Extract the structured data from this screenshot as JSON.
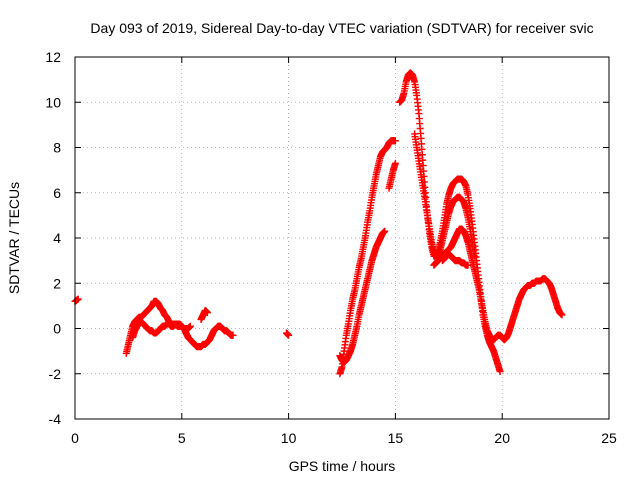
{
  "chart_data": {
    "type": "scatter",
    "title": "Day 093 of 2019, Sidereal Day-to-day VTEC variation (SDTVAR) for receiver svic",
    "xlabel": "GPS time / hours",
    "ylabel": "SDTVAR / TECUs",
    "xlim": [
      0,
      25
    ],
    "ylim": [
      -4,
      12
    ],
    "xticks": [
      0,
      5,
      10,
      15,
      20,
      25
    ],
    "yticks": [
      -4,
      -2,
      0,
      2,
      4,
      6,
      8,
      10,
      12
    ],
    "grid": true,
    "marker": "+",
    "series": [
      {
        "name": "SDTVAR",
        "color": "#ff0000",
        "segments": [
          {
            "x": [
              0.0,
              0.15
            ],
            "y": [
              1.2,
              1.3
            ]
          },
          {
            "x": [
              2.4,
              2.5,
              2.6,
              2.7,
              2.8,
              2.9,
              3.0,
              3.1,
              3.2,
              3.3,
              3.4,
              3.5,
              3.6,
              3.7,
              3.8,
              3.9,
              4.0,
              4.1,
              4.2,
              4.3,
              4.4,
              4.5,
              4.6,
              4.7,
              4.8,
              4.9,
              5.0,
              5.1,
              5.2,
              5.3,
              5.4,
              5.5,
              5.6,
              5.7,
              5.8,
              5.9,
              6.0,
              6.1,
              6.2,
              6.3,
              6.4,
              6.5,
              6.6,
              6.7,
              6.8,
              6.9,
              7.0,
              7.1,
              7.2,
              7.3,
              7.4
            ],
            "y": [
              -1.1,
              -0.7,
              -0.3,
              0.1,
              0.3,
              0.4,
              0.5,
              0.5,
              0.6,
              0.7,
              0.8,
              0.9,
              1.0,
              1.2,
              1.2,
              1.1,
              0.9,
              0.8,
              0.6,
              0.5,
              0.3,
              0.2,
              0.2,
              0.2,
              0.1,
              0.1,
              0.1,
              0.0,
              -0.2,
              -0.4,
              -0.5,
              -0.6,
              -0.7,
              -0.8,
              -0.8,
              -0.8,
              -0.7,
              -0.7,
              -0.6,
              -0.5,
              -0.3,
              -0.1,
              0.0,
              0.1,
              0.1,
              0.0,
              -0.1,
              -0.1,
              -0.2,
              -0.3,
              -0.3
            ]
          },
          {
            "x": [
              2.7,
              2.8,
              2.9,
              3.0,
              3.1,
              3.2,
              3.3,
              3.4,
              3.5,
              3.6,
              3.7,
              3.8,
              3.9,
              4.0,
              4.1,
              4.2,
              4.3,
              4.4,
              4.5,
              4.6,
              4.7,
              4.8,
              4.9,
              5.0,
              5.1,
              5.2,
              5.3,
              5.4
            ],
            "y": [
              -0.4,
              -0.1,
              0.1,
              0.2,
              0.3,
              0.2,
              0.1,
              0.0,
              -0.1,
              -0.1,
              -0.2,
              -0.2,
              -0.1,
              0.0,
              0.1,
              0.1,
              0.2,
              0.2,
              0.1,
              0.1,
              0.2,
              0.2,
              0.2,
              0.1,
              0.0,
              0.0,
              0.0,
              0.1
            ]
          },
          {
            "x": [
              5.9,
              6.0,
              6.1,
              6.2
            ],
            "y": [
              0.4,
              0.6,
              0.8,
              0.7
            ]
          },
          {
            "x": [
              9.9,
              10.0
            ],
            "y": [
              -0.2,
              -0.3
            ]
          },
          {
            "x": [
              12.4,
              12.5,
              12.6,
              12.7,
              12.8,
              12.9,
              13.0,
              13.1,
              13.2,
              13.3,
              13.4,
              13.5,
              13.6,
              13.7,
              13.8,
              13.9,
              14.0,
              14.1,
              14.2,
              14.3,
              14.4,
              14.5,
              14.6,
              14.7,
              14.8,
              14.9,
              15.0
            ],
            "y": [
              -2.0,
              -1.7,
              -1.0,
              -0.3,
              0.2,
              0.8,
              1.3,
              1.7,
              2.2,
              2.7,
              3.1,
              3.6,
              4.1,
              4.7,
              5.2,
              5.8,
              6.3,
              6.8,
              7.2,
              7.6,
              7.8,
              7.9,
              8.0,
              8.2,
              8.3,
              8.3,
              8.3
            ]
          },
          {
            "x": [
              12.4,
              12.5,
              12.6,
              12.7,
              12.8,
              12.9,
              13.0,
              13.1,
              13.2,
              13.3,
              13.4,
              13.5,
              13.6,
              13.7,
              13.8,
              13.9,
              14.0,
              14.1,
              14.2,
              14.3,
              14.4,
              14.5
            ],
            "y": [
              -1.2,
              -1.4,
              -1.5,
              -1.4,
              -1.2,
              -1.0,
              -0.7,
              -0.3,
              0.1,
              0.6,
              1.0,
              1.4,
              1.8,
              2.2,
              2.6,
              3.0,
              3.3,
              3.6,
              3.8,
              4.0,
              4.2,
              4.3
            ]
          },
          {
            "x": [
              14.7,
              14.8,
              14.9,
              15.0
            ],
            "y": [
              6.2,
              6.6,
              7.0,
              7.3
            ]
          },
          {
            "x": [
              15.2,
              15.3,
              15.4,
              15.5,
              15.6,
              15.7,
              15.8,
              15.9,
              16.0,
              16.1,
              16.2,
              16.3,
              16.4,
              16.5,
              16.6,
              16.7,
              16.8,
              16.9,
              17.0,
              17.1,
              17.2,
              17.3,
              17.4,
              17.5,
              17.6,
              17.7,
              17.8,
              17.9,
              18.0,
              18.1,
              18.2,
              18.3,
              18.4,
              18.5,
              18.6,
              18.7,
              18.8,
              18.9,
              19.0,
              19.1,
              19.2,
              19.3,
              19.4,
              19.5,
              19.6,
              19.7,
              19.8,
              19.9
            ],
            "y": [
              10.0,
              10.1,
              10.4,
              10.9,
              11.2,
              11.3,
              11.2,
              10.9,
              10.3,
              9.5,
              8.4,
              7.2,
              6.0,
              5.0,
              4.2,
              3.6,
              3.2,
              3.2,
              3.4,
              3.8,
              4.3,
              4.9,
              5.5,
              5.9,
              6.2,
              6.4,
              6.5,
              6.6,
              6.6,
              6.6,
              6.5,
              6.3,
              5.9,
              5.3,
              4.6,
              3.8,
              3.0,
              2.2,
              1.4,
              0.6,
              0.1,
              -0.3,
              -0.6,
              -0.8,
              -1.0,
              -1.3,
              -1.6,
              -1.9
            ]
          },
          {
            "x": [
              15.9,
              16.0,
              16.1,
              16.2,
              16.3,
              16.4,
              16.5,
              16.6,
              16.7,
              16.8,
              16.9,
              17.0,
              17.1,
              17.2,
              17.3,
              17.4,
              17.5,
              17.6,
              17.7,
              17.8,
              17.9,
              18.0,
              18.1,
              18.2,
              18.3,
              18.4,
              18.5,
              18.6,
              18.7
            ],
            "y": [
              8.6,
              8.0,
              7.4,
              6.8,
              6.2,
              5.6,
              5.0,
              4.4,
              3.8,
              3.4,
              3.2,
              3.3,
              3.5,
              3.9,
              4.3,
              4.7,
              5.1,
              5.4,
              5.6,
              5.7,
              5.8,
              5.8,
              5.7,
              5.6,
              5.3,
              4.9,
              4.4,
              3.8,
              3.2
            ]
          },
          {
            "x": [
              16.8,
              16.9,
              17.0,
              17.1,
              17.2,
              17.3,
              17.4,
              17.5,
              17.6,
              17.7,
              17.8,
              17.9,
              18.0,
              18.1,
              18.2,
              18.3,
              18.4,
              18.5,
              18.6,
              18.7,
              18.8,
              18.9,
              19.0,
              19.1,
              19.2,
              19.3,
              19.4,
              19.5,
              19.6,
              19.7,
              19.8,
              19.9,
              20.0,
              20.1,
              20.2,
              20.3,
              20.4,
              20.5,
              20.6,
              20.7,
              20.8,
              20.9,
              21.0,
              21.1,
              21.2,
              21.3,
              21.4,
              21.5,
              21.6,
              21.7,
              21.8,
              21.9,
              22.0,
              22.1,
              22.2,
              22.3,
              22.4,
              22.5,
              22.6,
              22.7,
              22.8
            ],
            "y": [
              2.8,
              2.9,
              3.0,
              3.1,
              3.2,
              3.3,
              3.4,
              3.5,
              3.6,
              3.8,
              4.0,
              4.2,
              4.4,
              4.4,
              4.3,
              4.1,
              3.8,
              3.4,
              3.0,
              2.6,
              2.2,
              1.8,
              1.3,
              0.8,
              0.3,
              -0.1,
              -0.3,
              -0.5,
              -0.5,
              -0.4,
              -0.3,
              -0.3,
              -0.4,
              -0.5,
              -0.4,
              -0.2,
              0.1,
              0.4,
              0.7,
              1.0,
              1.3,
              1.5,
              1.7,
              1.8,
              1.9,
              1.9,
              2.0,
              2.0,
              2.1,
              2.1,
              2.1,
              2.2,
              2.2,
              2.1,
              2.0,
              1.8,
              1.5,
              1.2,
              0.9,
              0.7,
              0.6
            ]
          },
          {
            "x": [
              17.2,
              17.3,
              17.4,
              17.5,
              17.6,
              17.7,
              17.8,
              17.9,
              18.0,
              18.1,
              18.2,
              18.3,
              18.4
            ],
            "y": [
              3.0,
              3.1,
              3.2,
              3.3,
              3.2,
              3.1,
              3.0,
              3.0,
              3.0,
              2.9,
              2.9,
              2.8,
              2.8
            ]
          }
        ]
      }
    ]
  }
}
